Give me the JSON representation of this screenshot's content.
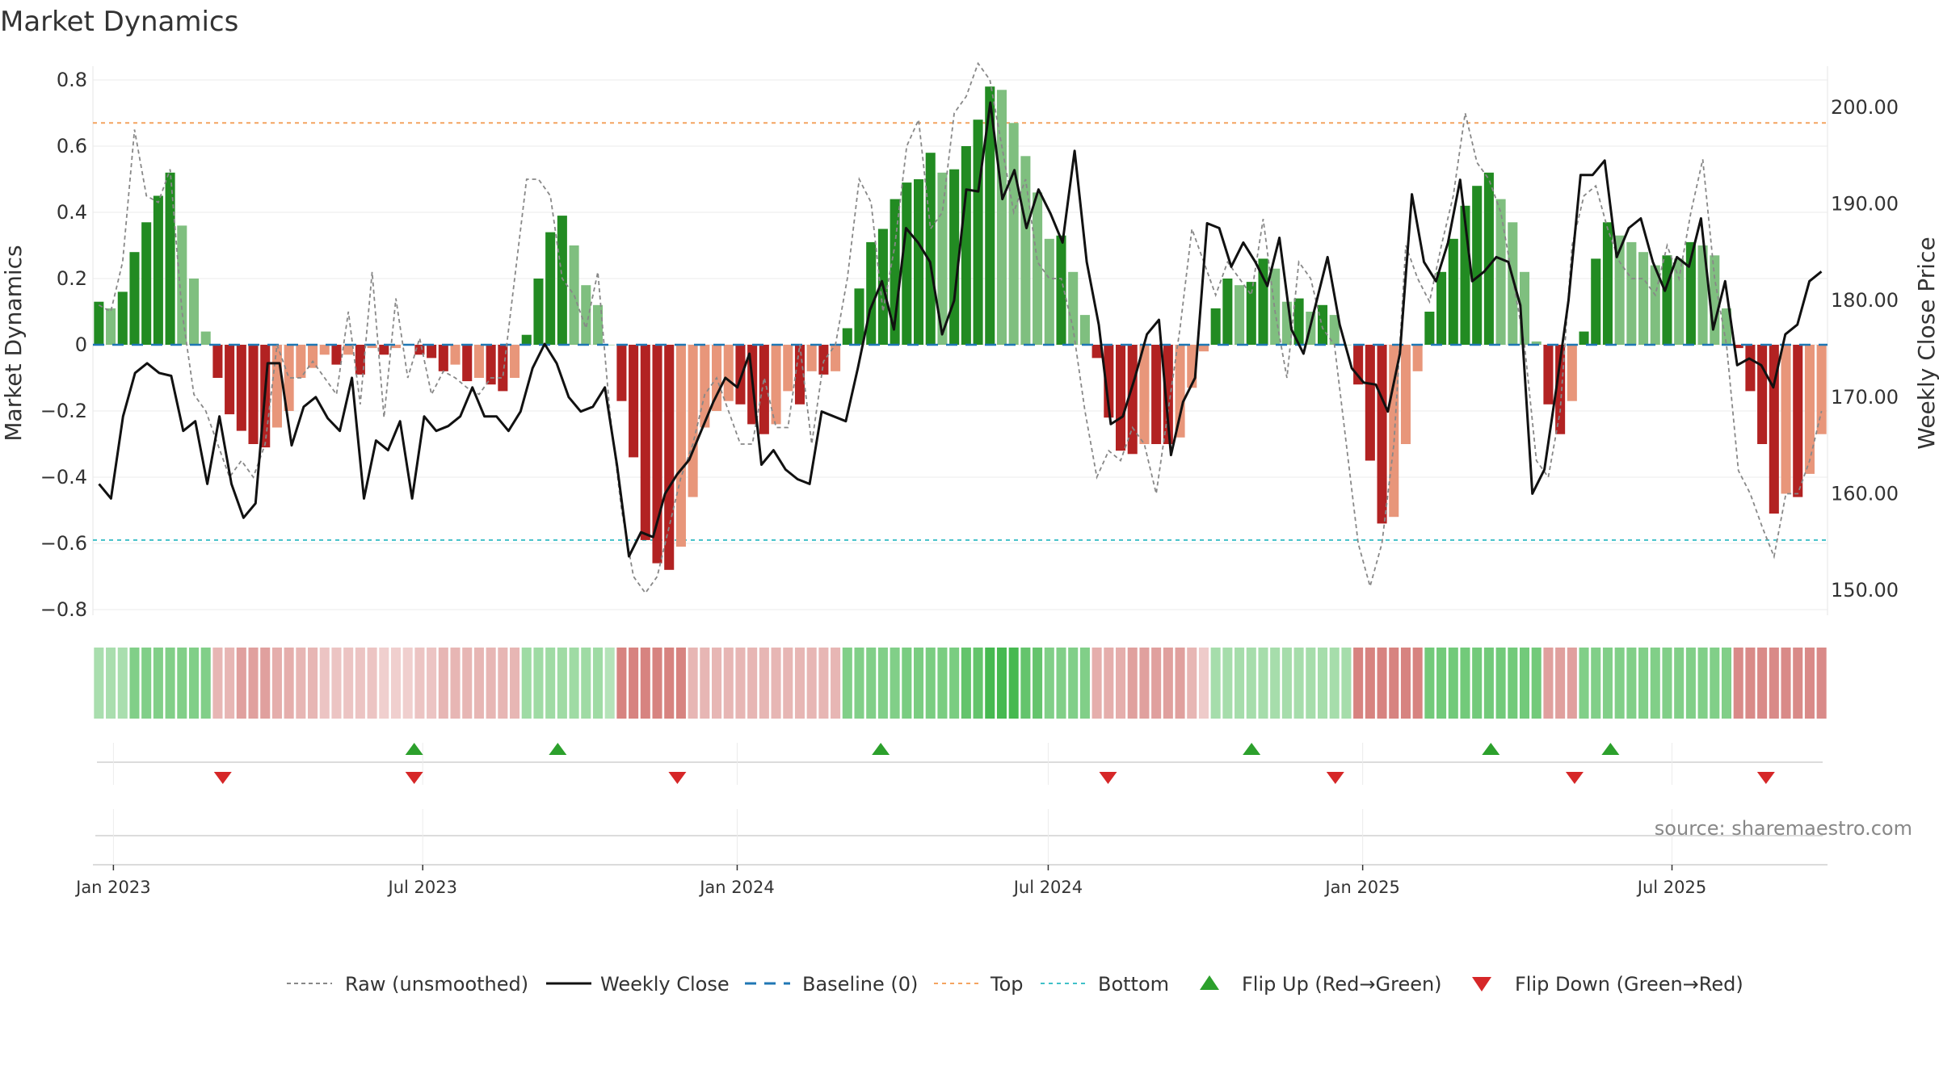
{
  "chart_data": {
    "type": "bar",
    "title": "Market Dynamics",
    "ylabel_left": "Market Dynamics",
    "ylabel_right": "Weekly Close Price",
    "ylim_left": [
      -0.8,
      0.8
    ],
    "ylim_right": [
      150,
      200
    ],
    "yticks_left": [
      "0.8",
      "0.6",
      "0.4",
      "0.2",
      "0",
      "−0.2",
      "−0.4",
      "−0.6",
      "−0.8"
    ],
    "yticks_right": [
      "200.00",
      "190.00",
      "180.00",
      "170.00",
      "160.00",
      "150.00"
    ],
    "x_start": "2022-12-20",
    "x_end": "2025-09-30",
    "x_ticks": [
      {
        "date": "2023-01-01",
        "label": "Jan 2023"
      },
      {
        "date": "2023-07-01",
        "label": "Jul 2023"
      },
      {
        "date": "2024-01-01",
        "label": "Jan 2024"
      },
      {
        "date": "2024-07-01",
        "label": "Jul 2024"
      },
      {
        "date": "2025-01-01",
        "label": "Jan 2025"
      },
      {
        "date": "2025-07-01",
        "label": "Jul 2025"
      }
    ],
    "top_threshold": 0.67,
    "bottom_threshold": -0.59,
    "baseline": 0,
    "colors": {
      "green_strong": "#228b22",
      "green_light": "#7fbf7f",
      "red_strong": "#b22222",
      "red_light": "#e8967a",
      "price_line": "#111111",
      "raw_line": "#888888",
      "baseline": "#1f77b4",
      "top": "#f4a460",
      "bottom": "#40c0c8",
      "flip_up": "#2ca02c",
      "flip_down": "#d62728"
    },
    "histogram": [
      0.13,
      0.11,
      0.16,
      0.28,
      0.37,
      0.45,
      0.52,
      0.36,
      0.2,
      0.04,
      -0.1,
      -0.21,
      -0.26,
      -0.3,
      -0.31,
      -0.25,
      -0.2,
      -0.1,
      -0.07,
      -0.03,
      -0.06,
      -0.03,
      -0.09,
      -0.01,
      -0.03,
      -0.01,
      0.0,
      -0.03,
      -0.04,
      -0.08,
      -0.06,
      -0.11,
      -0.1,
      -0.12,
      -0.14,
      -0.1,
      0.03,
      0.2,
      0.34,
      0.39,
      0.3,
      0.18,
      0.12,
      0.0,
      -0.17,
      -0.34,
      -0.59,
      -0.66,
      -0.68,
      -0.61,
      -0.46,
      -0.25,
      -0.2,
      -0.17,
      -0.18,
      -0.24,
      -0.27,
      -0.24,
      -0.14,
      -0.18,
      -0.08,
      -0.09,
      -0.08,
      0.05,
      0.17,
      0.31,
      0.35,
      0.44,
      0.49,
      0.5,
      0.58,
      0.52,
      0.53,
      0.6,
      0.68,
      0.78,
      0.77,
      0.67,
      0.57,
      0.46,
      0.32,
      0.33,
      0.22,
      0.09,
      -0.04,
      -0.22,
      -0.32,
      -0.33,
      -0.3,
      -0.3,
      -0.3,
      -0.28,
      -0.13,
      -0.02,
      0.11,
      0.2,
      0.18,
      0.19,
      0.26,
      0.23,
      0.13,
      0.14,
      0.1,
      0.12,
      0.09,
      0.0,
      -0.12,
      -0.35,
      -0.54,
      -0.52,
      -0.3,
      -0.08,
      0.1,
      0.22,
      0.32,
      0.42,
      0.48,
      0.52,
      0.44,
      0.37,
      0.22,
      0.01,
      -0.18,
      -0.27,
      -0.17,
      0.04,
      0.26,
      0.37,
      0.33,
      0.31,
      0.28,
      0.24,
      0.27,
      0.26,
      0.31,
      0.3,
      0.27,
      0.11,
      -0.01,
      -0.14,
      -0.3,
      -0.51,
      -0.45,
      -0.46,
      -0.39,
      -0.27
    ],
    "raw": [
      0.12,
      0.1,
      0.25,
      0.65,
      0.45,
      0.43,
      0.53,
      0.1,
      -0.15,
      -0.2,
      -0.3,
      -0.4,
      -0.35,
      -0.4,
      -0.3,
      0.0,
      -0.1,
      -0.1,
      -0.05,
      -0.1,
      -0.15,
      0.1,
      -0.18,
      0.22,
      -0.22,
      0.14,
      -0.1,
      0.02,
      -0.15,
      -0.08,
      -0.1,
      -0.13,
      -0.15,
      -0.1,
      -0.1,
      0.2,
      0.5,
      0.5,
      0.45,
      0.2,
      0.15,
      0.05,
      0.22,
      -0.2,
      -0.5,
      -0.7,
      -0.75,
      -0.7,
      -0.55,
      -0.4,
      -0.3,
      -0.15,
      -0.1,
      -0.2,
      -0.3,
      -0.3,
      -0.1,
      -0.25,
      -0.25,
      0.0,
      -0.3,
      -0.05,
      0.0,
      0.2,
      0.5,
      0.43,
      0.1,
      0.3,
      0.6,
      0.68,
      0.35,
      0.4,
      0.7,
      0.75,
      0.85,
      0.8,
      0.6,
      0.4,
      0.5,
      0.25,
      0.2,
      0.2,
      0.05,
      -0.2,
      -0.4,
      -0.32,
      -0.35,
      -0.25,
      -0.3,
      -0.45,
      -0.2,
      0.05,
      0.35,
      0.25,
      0.15,
      0.25,
      0.2,
      0.15,
      0.38,
      0.1,
      -0.1,
      0.25,
      0.2,
      0.05,
      0.0,
      -0.3,
      -0.6,
      -0.73,
      -0.6,
      -0.3,
      0.3,
      0.2,
      0.13,
      0.3,
      0.45,
      0.7,
      0.55,
      0.5,
      0.4,
      0.2,
      0.0,
      -0.35,
      -0.4,
      -0.2,
      0.3,
      0.45,
      0.48,
      0.35,
      0.25,
      0.2,
      0.2,
      0.15,
      0.3,
      0.2,
      0.4,
      0.56,
      0.2,
      0.0,
      -0.38,
      -0.45,
      -0.55,
      -0.64,
      -0.45,
      -0.45,
      -0.35,
      -0.2
    ],
    "price": [
      161,
      159.5,
      168,
      172.5,
      173.5,
      172.5,
      172.2,
      166.5,
      167.5,
      161,
      168,
      161,
      157.5,
      159,
      173.5,
      173.5,
      165,
      169,
      170,
      167.8,
      166.5,
      172,
      159.5,
      165.5,
      164.5,
      167.5,
      159.5,
      168,
      166.5,
      167,
      168,
      171,
      168,
      168,
      166.5,
      168.5,
      173,
      175.5,
      173.5,
      170,
      168.5,
      169,
      171,
      163,
      153.5,
      156,
      155.5,
      160,
      162,
      163.5,
      166.5,
      169.5,
      172,
      171,
      174.5,
      163,
      164.5,
      162.5,
      161.5,
      161,
      168.5,
      168,
      167.5,
      173,
      179,
      182,
      177,
      187.5,
      186,
      184,
      176.5,
      180,
      191.5,
      191.3,
      200.5,
      190.5,
      193.5,
      187.5,
      191.5,
      189,
      186,
      195.5,
      184,
      177.5,
      167.2,
      168,
      172,
      176.5,
      178,
      164,
      169.5,
      172,
      188,
      187.5,
      183.5,
      186,
      184,
      181.5,
      186.5,
      177,
      174.5,
      179.5,
      184.5,
      177.5,
      173,
      171.5,
      171.3,
      168.5,
      174.5,
      191,
      184,
      182,
      186,
      192.5,
      182,
      183,
      184.5,
      184,
      179.5,
      160,
      162.5,
      171,
      180,
      193,
      193,
      194.5,
      184.5,
      187.5,
      188.5,
      184,
      181,
      184.5,
      183.5,
      188.5,
      177,
      182,
      173.3,
      174,
      173.3,
      171,
      176.5,
      177.5,
      182,
      183
    ],
    "band_values": [
      0.28,
      0.28,
      0.28,
      0.55,
      0.55,
      0.55,
      0.55,
      0.55,
      0.55,
      0.55,
      -0.3,
      -0.3,
      -0.45,
      -0.45,
      -0.45,
      -0.35,
      -0.35,
      -0.3,
      -0.3,
      -0.2,
      -0.2,
      -0.2,
      -0.2,
      -0.2,
      -0.12,
      -0.12,
      -0.12,
      -0.2,
      -0.2,
      -0.3,
      -0.3,
      -0.3,
      -0.3,
      -0.3,
      -0.3,
      -0.3,
      0.35,
      0.35,
      0.35,
      0.35,
      0.35,
      0.35,
      0.35,
      0.2,
      -0.65,
      -0.65,
      -0.65,
      -0.65,
      -0.65,
      -0.65,
      -0.3,
      -0.3,
      -0.3,
      -0.3,
      -0.3,
      -0.3,
      -0.3,
      -0.3,
      -0.3,
      -0.3,
      -0.3,
      -0.3,
      -0.3,
      0.55,
      0.55,
      0.55,
      0.55,
      0.55,
      0.6,
      0.6,
      0.6,
      0.6,
      0.6,
      0.75,
      0.75,
      0.95,
      0.95,
      0.95,
      0.75,
      0.75,
      0.55,
      0.55,
      0.55,
      0.55,
      -0.35,
      -0.35,
      -0.35,
      -0.45,
      -0.45,
      -0.45,
      -0.45,
      -0.45,
      -0.3,
      -0.15,
      0.3,
      0.3,
      0.3,
      0.3,
      0.3,
      0.3,
      0.3,
      0.3,
      0.3,
      0.3,
      0.3,
      0.3,
      -0.65,
      -0.65,
      -0.65,
      -0.65,
      -0.65,
      -0.65,
      0.65,
      0.65,
      0.65,
      0.65,
      0.65,
      0.65,
      0.65,
      0.65,
      0.65,
      0.65,
      -0.45,
      -0.45,
      -0.45,
      0.55,
      0.55,
      0.55,
      0.55,
      0.55,
      0.55,
      0.55,
      0.55,
      0.55,
      0.55,
      0.55,
      0.55,
      0.55,
      -0.6,
      -0.6,
      -0.6,
      -0.6,
      -0.6,
      -0.6,
      -0.6,
      -0.6
    ],
    "flip_up_dates": [
      "2023-06-26",
      "2023-09-18",
      "2024-03-25",
      "2024-10-28",
      "2025-03-17",
      "2025-05-26"
    ],
    "flip_down_dates": [
      "2023-03-06",
      "2023-06-26",
      "2023-11-27",
      "2024-08-05",
      "2024-12-16",
      "2025-05-05",
      "2025-08-25"
    ],
    "legend": [
      {
        "key": "raw",
        "label": "Raw (unsmoothed)"
      },
      {
        "key": "close",
        "label": "Weekly Close"
      },
      {
        "key": "baseline",
        "label": "Baseline (0)"
      },
      {
        "key": "top",
        "label": "Top"
      },
      {
        "key": "bottom",
        "label": "Bottom"
      },
      {
        "key": "flip_up",
        "label": "Flip Up (Red→Green)"
      },
      {
        "key": "flip_down",
        "label": "Flip Down (Green→Red)"
      }
    ],
    "source": "source: sharemaestro.com"
  }
}
